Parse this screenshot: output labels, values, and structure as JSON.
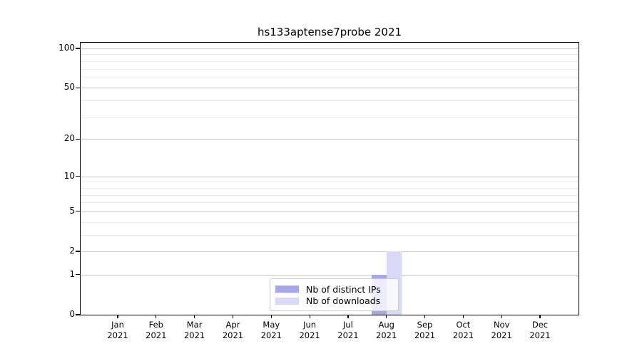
{
  "chart_data": {
    "type": "bar",
    "title": "hs133aptense7probe 2021",
    "categories": [
      "Jan",
      "Feb",
      "Mar",
      "Apr",
      "May",
      "Jun",
      "Jul",
      "Aug",
      "Sep",
      "Oct",
      "Nov",
      "Dec"
    ],
    "category_year": "2021",
    "series": [
      {
        "name": "Nb of distinct IPs",
        "color": "#a6a6ee",
        "values": [
          0,
          0,
          0,
          0,
          0,
          0,
          0,
          1,
          0,
          0,
          0,
          0
        ]
      },
      {
        "name": "Nb of downloads",
        "color": "#d8d8f8",
        "values": [
          0,
          0,
          0,
          0,
          0,
          0,
          0,
          2,
          0,
          0,
          0,
          0
        ]
      }
    ],
    "yscale": "log1p",
    "ylim": [
      0,
      110
    ],
    "yticks": [
      0,
      1,
      2,
      5,
      10,
      20,
      50,
      100
    ],
    "minor_gridlines": [
      3,
      4,
      6,
      7,
      8,
      9,
      30,
      40,
      60,
      70,
      80,
      90
    ],
    "grid": true,
    "legend_position": "lower center",
    "colors": {
      "major_grid": "#c9c9c9",
      "minor_grid": "#ececec",
      "axis": "#000000",
      "legend_border": "#cccccc",
      "text": "#000000"
    }
  }
}
